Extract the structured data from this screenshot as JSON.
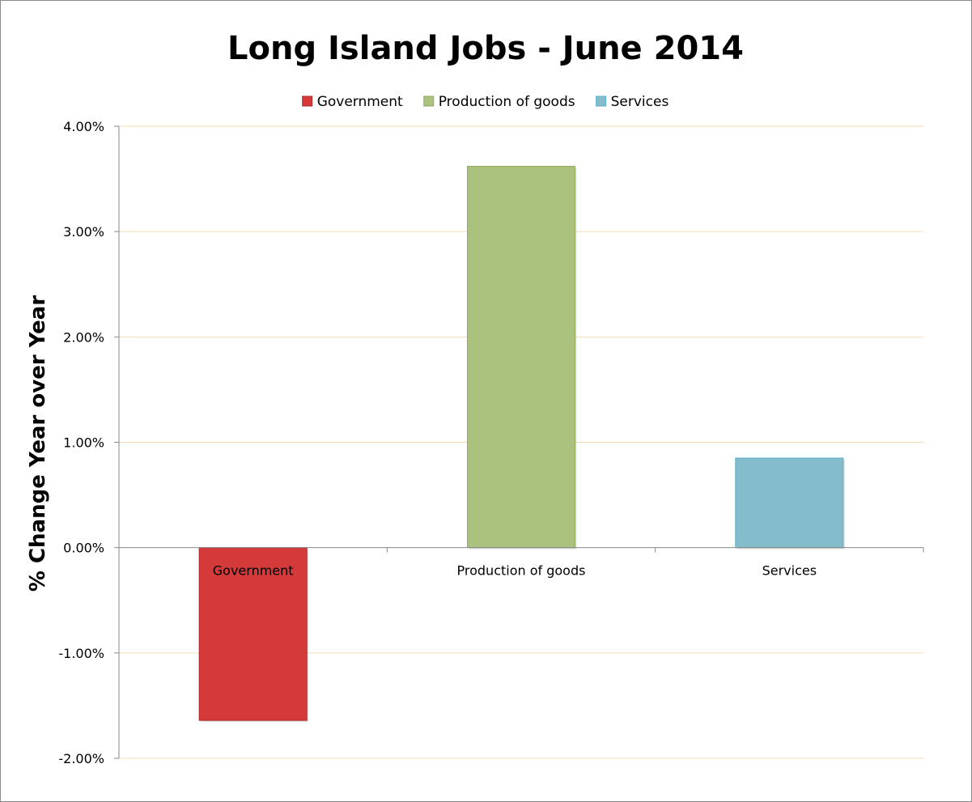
{
  "chart_data": {
    "type": "bar",
    "title": "Long Island Jobs - June 2014",
    "xlabel": "",
    "ylabel": "% Change Year over Year",
    "categories": [
      "Government",
      "Production of goods",
      "Services"
    ],
    "values": [
      -1.64,
      3.62,
      0.85
    ],
    "value_unit": "%",
    "ylim": [
      -2,
      4
    ],
    "yticks": [
      -2,
      -1,
      0,
      1,
      2,
      3,
      4
    ],
    "ytick_labels": [
      "-2.00%",
      "-1.00%",
      "0.00%",
      "1.00%",
      "2.00%",
      "3.00%",
      "4.00%"
    ],
    "grid": true,
    "grid_color": "#f5dcb4",
    "legend": {
      "placement": "top",
      "entries": [
        "Government",
        "Production of goods",
        "Services"
      ]
    },
    "colors": [
      "#d43a3a",
      "#abc27f",
      "#84bccb"
    ],
    "edge_colors": [
      "#b02828",
      "#8fab5e",
      "#5aaed0"
    ]
  }
}
